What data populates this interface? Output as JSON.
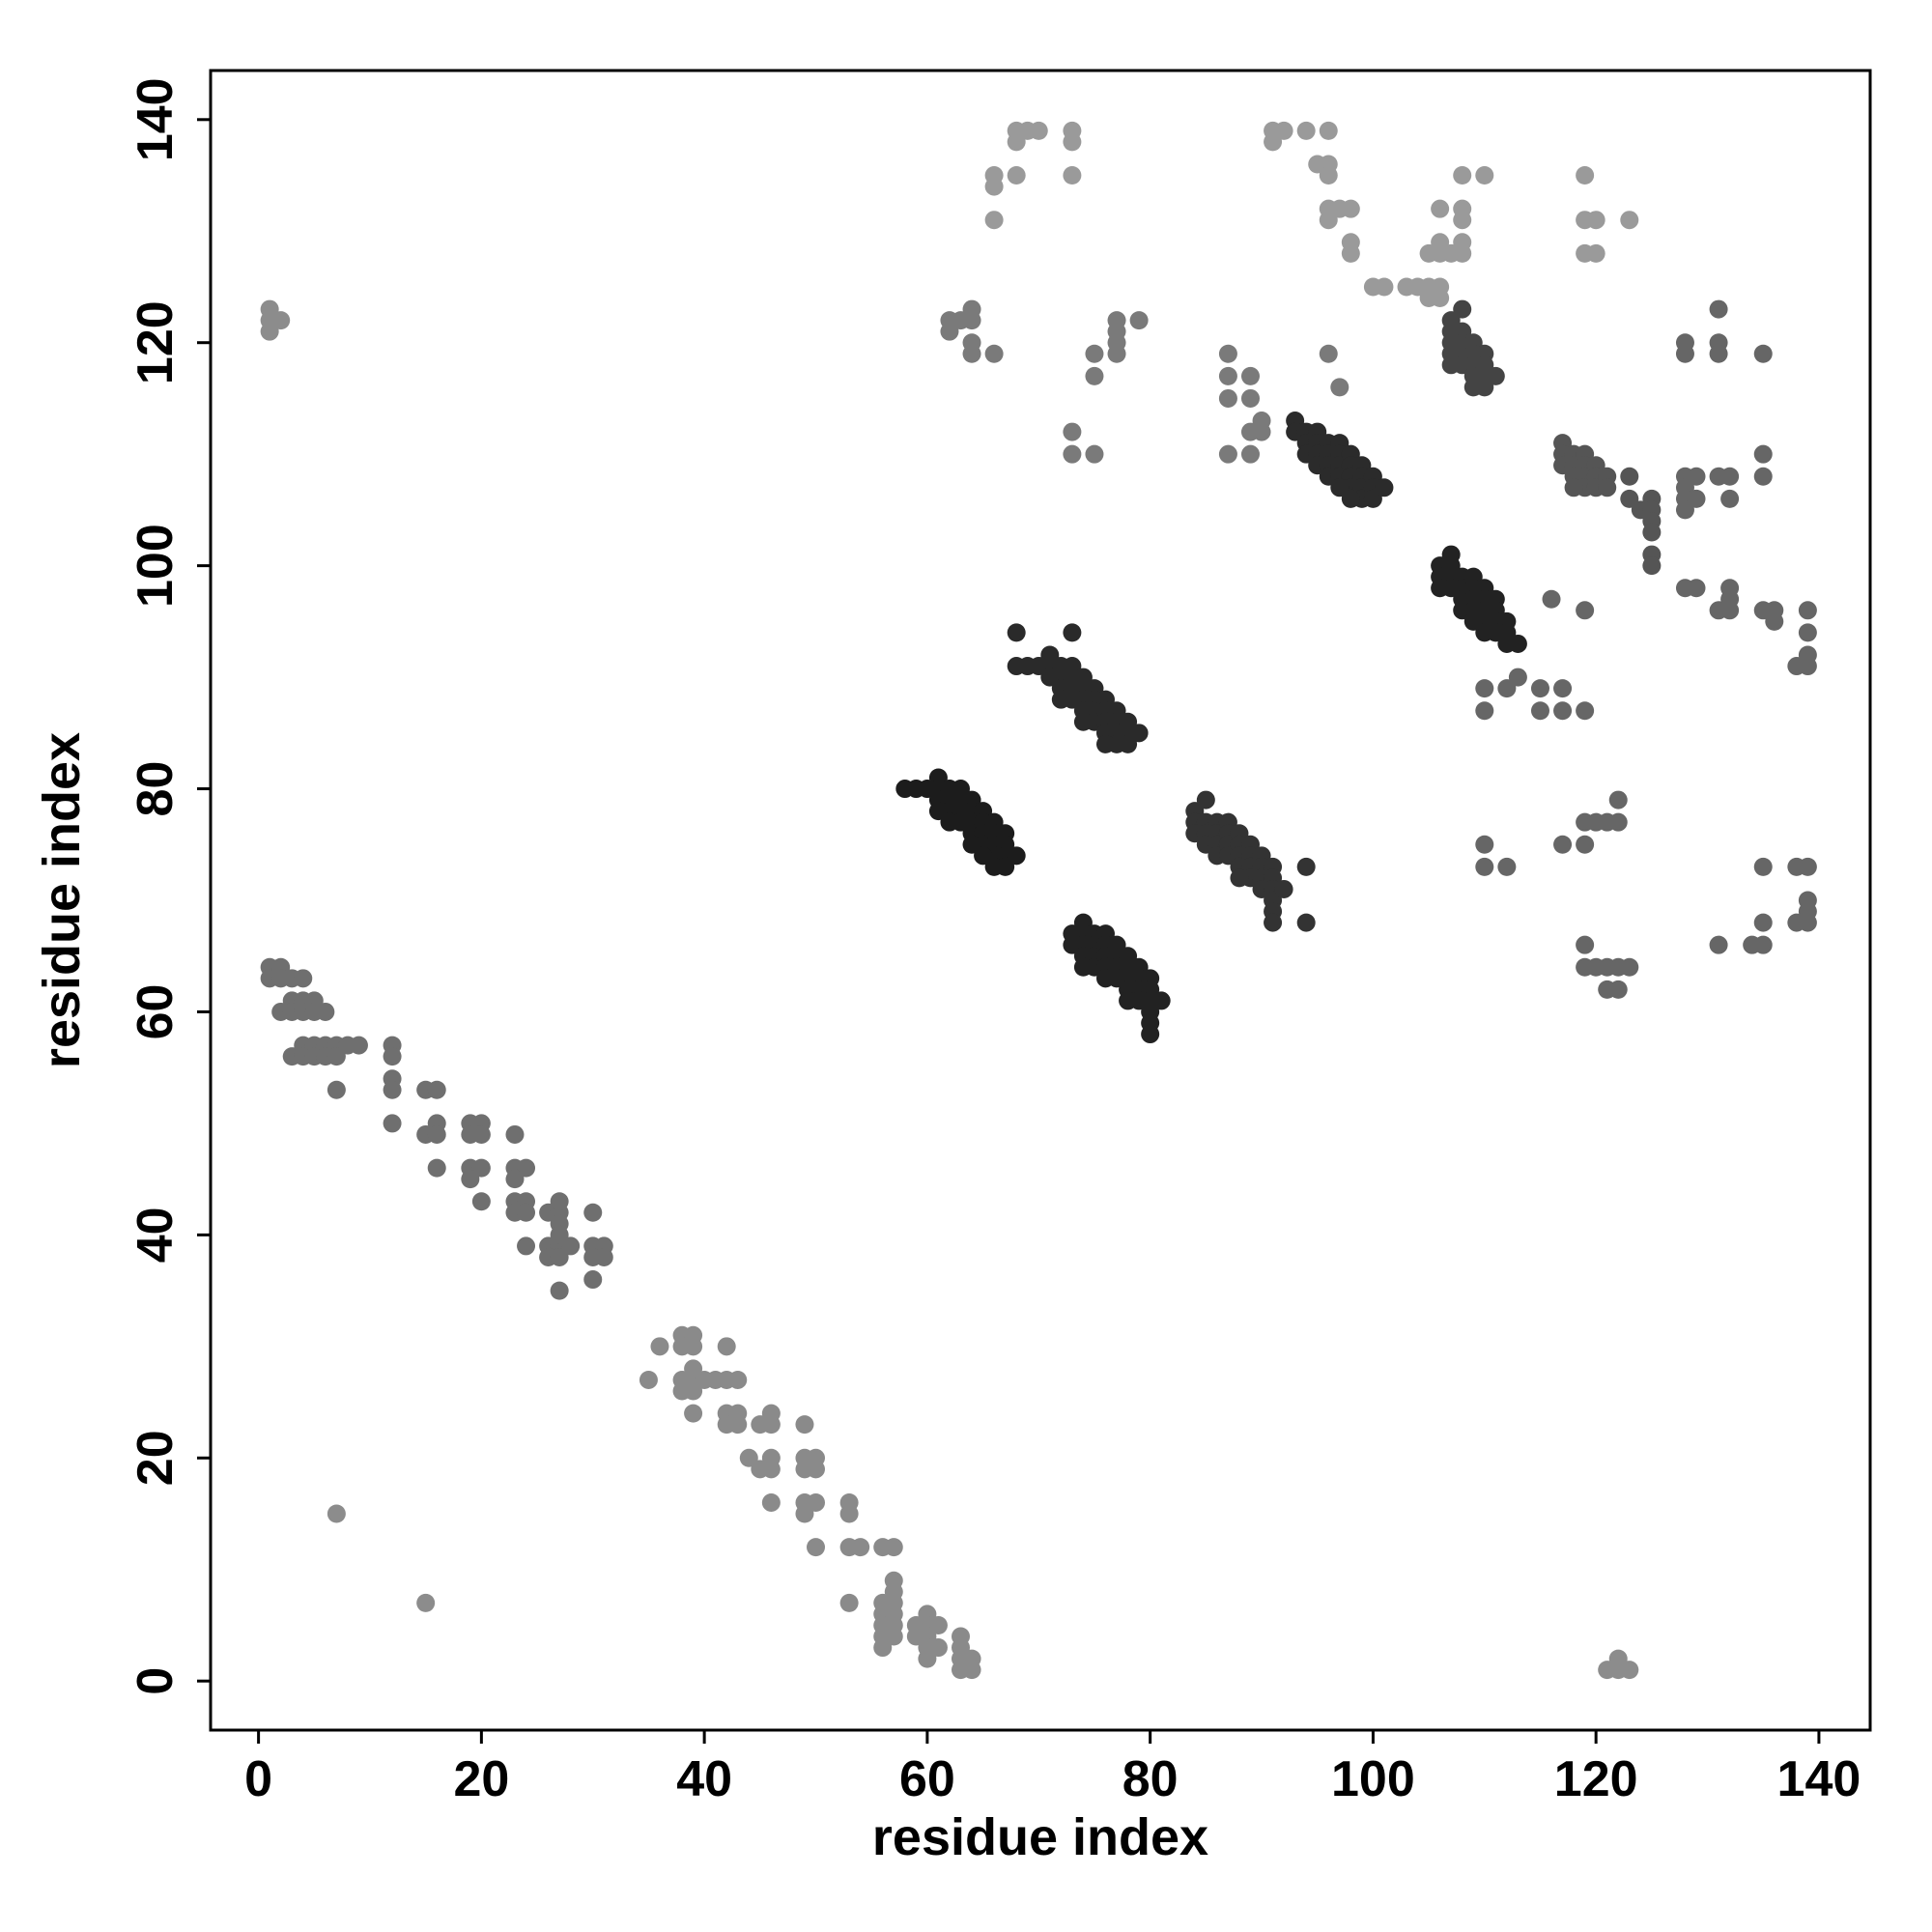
{
  "chart_data": {
    "type": "scatter",
    "x_label": "residue index",
    "y_label": "residue index",
    "xlim": [
      -4.3,
      144.6
    ],
    "ylim": [
      -4.4,
      144.4
    ],
    "xticks": [
      0,
      20,
      40,
      60,
      80,
      100,
      120,
      140
    ],
    "yticks": [
      0,
      20,
      40,
      60,
      80,
      100,
      120,
      140
    ],
    "series": [
      {
        "color": "#6f6f6f",
        "x": [
          1,
          1,
          2,
          2,
          3,
          4,
          2,
          3,
          3,
          4,
          4,
          5,
          5,
          6,
          3,
          4,
          4,
          5,
          5,
          6,
          6,
          7,
          7,
          8,
          9,
          7,
          12,
          12,
          12,
          12,
          12,
          15,
          16,
          15,
          16,
          16,
          16,
          19,
          20,
          19,
          20,
          19,
          20,
          19,
          20,
          23,
          23,
          24,
          23,
          23,
          24,
          23,
          24,
          24,
          26,
          27,
          26,
          27,
          26,
          27,
          27,
          27,
          27,
          28,
          27,
          30,
          30,
          31,
          30,
          31,
          30
        ],
        "y": [
          64,
          63,
          64,
          63,
          63,
          63,
          60,
          61,
          60,
          61,
          60,
          61,
          60,
          60,
          56,
          57,
          56,
          57,
          56,
          57,
          56,
          57,
          56,
          57,
          57,
          53,
          57,
          56,
          54,
          53,
          50,
          53,
          53,
          49,
          50,
          49,
          46,
          50,
          50,
          49,
          49,
          46,
          46,
          45,
          43,
          49,
          46,
          46,
          45,
          43,
          43,
          42,
          42,
          39,
          42,
          42,
          39,
          39,
          38,
          38,
          43,
          41,
          40,
          39,
          35,
          42,
          39,
          39,
          38,
          38,
          36
        ]
      },
      {
        "color": "#8a8a8a",
        "x": [
          35,
          36,
          38,
          39,
          38,
          39,
          38,
          39,
          39,
          40,
          38,
          39,
          39,
          41,
          42,
          42,
          43,
          42,
          43,
          42,
          43,
          44,
          45,
          46,
          46,
          46,
          46,
          45,
          46,
          49,
          49,
          50,
          49,
          50,
          49,
          50,
          49,
          50,
          53,
          53,
          53,
          54,
          53,
          56,
          57,
          57,
          57,
          57,
          56,
          56,
          57,
          56,
          57,
          56,
          57,
          56,
          59,
          59,
          60,
          60,
          61,
          60,
          60,
          61,
          60,
          63,
          63,
          64,
          63,
          63,
          64
        ],
        "y": [
          27,
          30,
          31,
          31,
          30,
          30,
          27,
          27,
          28,
          27,
          26,
          26,
          24,
          27,
          30,
          27,
          27,
          24,
          24,
          23,
          23,
          20,
          23,
          23,
          24,
          20,
          19,
          19,
          16,
          23,
          20,
          20,
          19,
          19,
          16,
          16,
          15,
          12,
          16,
          15,
          12,
          12,
          7,
          12,
          12,
          9,
          8,
          7,
          7,
          6,
          6,
          5,
          5,
          4,
          4,
          3,
          5,
          4,
          6,
          5,
          5,
          4,
          3,
          3,
          2,
          4,
          3,
          2,
          2,
          1,
          1
        ]
      },
      {
        "color": "#1c1c1c",
        "x": [
          58,
          59,
          60,
          61,
          61,
          61,
          62,
          62,
          62,
          63,
          63,
          63,
          63,
          64,
          64,
          64,
          64,
          65,
          65,
          65,
          65,
          66,
          66,
          66,
          66,
          67,
          67,
          67,
          67,
          68,
          66,
          65,
          62,
          61,
          64
        ],
        "y": [
          80,
          80,
          80,
          81,
          80,
          79,
          80,
          79,
          78,
          80,
          79,
          78,
          77,
          79,
          78,
          77,
          76,
          78,
          77,
          76,
          75,
          77,
          76,
          75,
          74,
          76,
          75,
          74,
          73,
          74,
          73,
          74,
          77,
          78,
          75
        ]
      },
      {
        "color": "#2a2a2a",
        "x": [
          68,
          68,
          69,
          70,
          71,
          71,
          71,
          72,
          72,
          72,
          73,
          73,
          73,
          73,
          73,
          74,
          74,
          74,
          74,
          75,
          75,
          75,
          75,
          76,
          76,
          76,
          76,
          77,
          77,
          77,
          77,
          78,
          78,
          78,
          79,
          76,
          72,
          74
        ],
        "y": [
          94,
          91,
          91,
          91,
          92,
          91,
          90,
          91,
          90,
          89,
          94,
          91,
          90,
          89,
          88,
          90,
          89,
          88,
          87,
          89,
          88,
          87,
          86,
          88,
          87,
          86,
          85,
          87,
          86,
          85,
          84,
          86,
          85,
          84,
          85,
          84,
          88,
          86
        ]
      },
      {
        "color": "#222222",
        "x": [
          73,
          73,
          74,
          74,
          74,
          74,
          75,
          75,
          75,
          75,
          76,
          76,
          76,
          76,
          76,
          77,
          77,
          77,
          77,
          78,
          78,
          78,
          78,
          79,
          79,
          79,
          79,
          80,
          80,
          80,
          80,
          80,
          80,
          81,
          78,
          74
        ],
        "y": [
          67,
          66,
          68,
          67,
          66,
          65,
          67,
          66,
          65,
          64,
          67,
          66,
          65,
          64,
          63,
          66,
          65,
          64,
          63,
          65,
          64,
          63,
          62,
          64,
          63,
          62,
          61,
          63,
          62,
          61,
          60,
          59,
          58,
          61,
          61,
          64
        ]
      },
      {
        "color": "#333333",
        "x": [
          84,
          84,
          84,
          85,
          85,
          85,
          85,
          86,
          86,
          86,
          86,
          87,
          87,
          87,
          87,
          88,
          88,
          88,
          88,
          89,
          89,
          89,
          89,
          90,
          90,
          90,
          90,
          91,
          91,
          91,
          91,
          91,
          91,
          92,
          94,
          94,
          88
        ],
        "y": [
          78,
          77,
          76,
          79,
          77,
          76,
          75,
          77,
          76,
          75,
          74,
          77,
          76,
          75,
          74,
          76,
          75,
          74,
          73,
          75,
          74,
          73,
          72,
          74,
          73,
          72,
          71,
          73,
          72,
          71,
          70,
          69,
          68,
          71,
          73,
          68,
          72
        ]
      },
      {
        "color": "#2b2b2b",
        "x": [
          93,
          93,
          94,
          94,
          94,
          95,
          95,
          95,
          95,
          96,
          96,
          96,
          96,
          97,
          97,
          97,
          97,
          98,
          98,
          98,
          98,
          99,
          99,
          99,
          99,
          100,
          100,
          100,
          101,
          98,
          97
        ],
        "y": [
          113,
          112,
          112,
          111,
          110,
          112,
          111,
          110,
          109,
          111,
          110,
          109,
          108,
          111,
          110,
          109,
          108,
          110,
          109,
          108,
          107,
          109,
          108,
          107,
          106,
          108,
          107,
          106,
          107,
          106,
          107
        ]
      },
      {
        "color": "#222222",
        "x": [
          106,
          106,
          106,
          107,
          107,
          107,
          107,
          108,
          108,
          108,
          108,
          109,
          109,
          109,
          109,
          110,
          110,
          110,
          110,
          110,
          111,
          111,
          111,
          111,
          112,
          112,
          112,
          113,
          109
        ],
        "y": [
          100,
          99,
          98,
          101,
          100,
          99,
          98,
          99,
          98,
          97,
          96,
          99,
          98,
          97,
          96,
          98,
          97,
          96,
          95,
          94,
          97,
          96,
          95,
          94,
          95,
          94,
          93,
          93,
          95
        ]
      },
      {
        "color": "#444444",
        "x": [
          107,
          107,
          107,
          107,
          107,
          108,
          108,
          108,
          108,
          109,
          109,
          109,
          109,
          109,
          110,
          110,
          110,
          110,
          111,
          108
        ],
        "y": [
          122,
          121,
          120,
          119,
          118,
          121,
          120,
          119,
          118,
          120,
          119,
          118,
          117,
          116,
          119,
          118,
          117,
          116,
          117,
          123
        ]
      },
      {
        "color": "#555555",
        "x": [
          117,
          117,
          117,
          118,
          118,
          118,
          119,
          119,
          119,
          119,
          120,
          120,
          120,
          121,
          121,
          123,
          123,
          124,
          125,
          125,
          125,
          125,
          125,
          125,
          118
        ],
        "y": [
          111,
          110,
          109,
          110,
          109,
          108,
          110,
          109,
          108,
          107,
          109,
          108,
          107,
          108,
          107,
          108,
          106,
          105,
          106,
          105,
          104,
          103,
          101,
          100,
          107
        ]
      },
      {
        "color": "#9a9a9a",
        "x": [
          66,
          66,
          66,
          68,
          68,
          68,
          69,
          70,
          73,
          73,
          73,
          91,
          91,
          92,
          94,
          95,
          96,
          96,
          96,
          96,
          96,
          97,
          98,
          98,
          98,
          100,
          101,
          103,
          104,
          105,
          105,
          105,
          106,
          106,
          106,
          106,
          106,
          107,
          108,
          108,
          108,
          108,
          108,
          110,
          119,
          119,
          119,
          120,
          120,
          123
        ],
        "y": [
          135,
          134,
          131,
          139,
          138,
          135,
          139,
          139,
          139,
          138,
          135,
          139,
          138,
          139,
          139,
          136,
          139,
          136,
          135,
          132,
          131,
          132,
          132,
          129,
          128,
          125,
          125,
          125,
          125,
          128,
          125,
          124,
          129,
          128,
          125,
          124,
          132,
          128,
          135,
          132,
          131,
          129,
          128,
          135,
          135,
          131,
          128,
          131,
          128,
          131
        ]
      },
      {
        "color": "#7a7a7a",
        "x": [
          62,
          62,
          63,
          64,
          64,
          64,
          64,
          66,
          75,
          75,
          77,
          77,
          77,
          77,
          79,
          73,
          73,
          75,
          87,
          87,
          87,
          87,
          89,
          89,
          89,
          89,
          90,
          90,
          96,
          97
        ],
        "y": [
          122,
          121,
          122,
          123,
          122,
          120,
          119,
          119,
          119,
          117,
          122,
          121,
          120,
          119,
          122,
          112,
          110,
          110,
          119,
          117,
          115,
          110,
          117,
          115,
          112,
          110,
          113,
          112,
          119,
          116
        ]
      },
      {
        "color": "#666666",
        "x": [
          128,
          128,
          131,
          131,
          131,
          135,
          128,
          128,
          128,
          128,
          129,
          129,
          131,
          132,
          132,
          135,
          135,
          128,
          129,
          131,
          132,
          132,
          132,
          135,
          136,
          136,
          138,
          139,
          139,
          139,
          139,
          116,
          119,
          110,
          110,
          112,
          113,
          115,
          115,
          117,
          117,
          119,
          110,
          110,
          112,
          117,
          119,
          119,
          120,
          121,
          122,
          122,
          119,
          119,
          120,
          121,
          121,
          122,
          122,
          123,
          131,
          134,
          135,
          135,
          135,
          138,
          138,
          139,
          139,
          139,
          139
        ],
        "y": [
          120,
          119,
          123,
          120,
          119,
          119,
          108,
          107,
          106,
          105,
          108,
          106,
          108,
          108,
          106,
          110,
          108,
          98,
          98,
          96,
          98,
          96,
          97,
          96,
          96,
          95,
          91,
          96,
          94,
          92,
          91,
          97,
          96,
          89,
          87,
          89,
          90,
          89,
          87,
          89,
          87,
          87,
          75,
          73,
          73,
          75,
          77,
          75,
          77,
          77,
          79,
          77,
          66,
          64,
          64,
          64,
          62,
          64,
          62,
          64,
          66,
          66,
          73,
          68,
          66,
          73,
          68,
          73,
          70,
          69,
          68
        ]
      },
      {
        "color": "#8c8c8c",
        "x": [
          1,
          1,
          1,
          2,
          122,
          122,
          121,
          123,
          7,
          15
        ],
        "y": [
          122,
          121,
          123,
          122,
          1,
          2,
          1,
          1,
          15,
          7
        ]
      }
    ]
  }
}
